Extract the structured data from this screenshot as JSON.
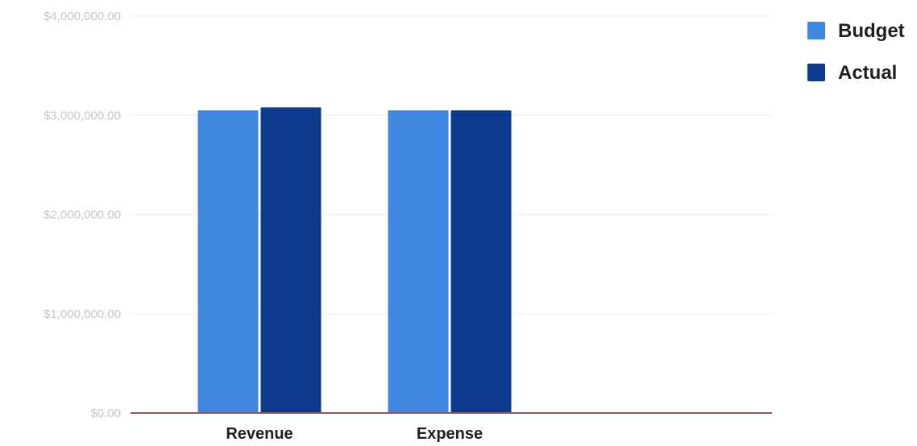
{
  "chart_data": {
    "type": "bar",
    "title": "",
    "xlabel": "",
    "ylabel": "",
    "categories": [
      "Revenue",
      "Expense"
    ],
    "series": [
      {
        "name": "Budget",
        "color": "#3f87e0",
        "values": [
          3050000,
          3050000
        ]
      },
      {
        "name": "Actual",
        "color": "#0d3a8c",
        "values": [
          3080000,
          3050000
        ]
      }
    ],
    "ylim": [
      0,
      4000000
    ],
    "y_ticks": [
      0,
      1000000,
      2000000,
      3000000,
      4000000
    ],
    "y_tick_labels": [
      "$0.00",
      "$1,000,000.00",
      "$2,000,000.00",
      "$3,000,000.00",
      "$4,000,000.00"
    ],
    "grid": true,
    "legend_position": "top-right"
  }
}
